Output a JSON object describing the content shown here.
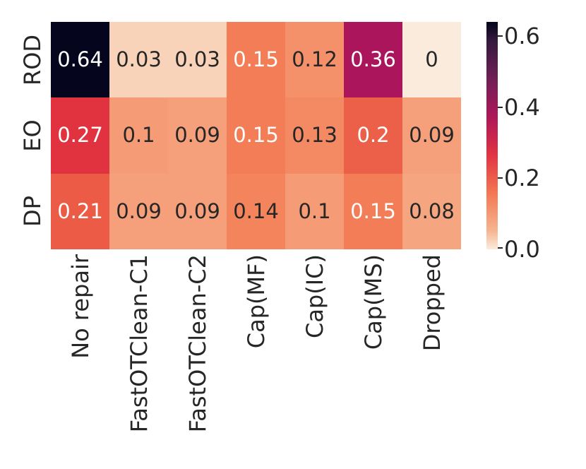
{
  "figure": {
    "background": "#ffffff"
  },
  "colors": {
    "tick_label": "#262626",
    "annot_dark": "#262626",
    "annot_light": "#ffffff"
  },
  "chart_data": {
    "type": "heatmap",
    "title": "",
    "xlabel": "",
    "ylabel": "",
    "colormap": "rocket_r",
    "rows": [
      "ROD",
      "EO",
      "DP"
    ],
    "columns": [
      "No repair",
      "FastOTClean-C1",
      "FastOTClean-C2",
      "Cap(MF)",
      "Cap(IC)",
      "Cap(MS)",
      "Dropped"
    ],
    "values": [
      [
        0.64,
        0.03,
        0.03,
        0.15,
        0.12,
        0.36,
        0
      ],
      [
        0.27,
        0.1,
        0.09,
        0.15,
        0.13,
        0.2,
        0.09
      ],
      [
        0.21,
        0.09,
        0.09,
        0.14,
        0.1,
        0.15,
        0.08
      ]
    ],
    "cell_labels": [
      [
        "0.64",
        "0.03",
        "0.03",
        "0.15",
        "0.12",
        "0.36",
        "0"
      ],
      [
        "0.27",
        "0.1",
        "0.09",
        "0.15",
        "0.13",
        "0.2",
        "0.09"
      ],
      [
        "0.21",
        "0.09",
        "0.09",
        "0.14",
        "0.1",
        "0.15",
        "0.08"
      ]
    ],
    "cell_colors": [
      [
        "#05061E",
        "#F8D3BA",
        "#F8D3BA",
        "#F37D56",
        "#F4906A",
        "#AA155C",
        "#FAEBDC"
      ],
      [
        "#E0333F",
        "#F59B75",
        "#F5A07B",
        "#F37D56",
        "#F48A63",
        "#EC5F48",
        "#F5A07B"
      ],
      [
        "#EB5B45",
        "#F5A07B",
        "#F5A07B",
        "#F4845C",
        "#F59B75",
        "#F37D56",
        "#F5A681"
      ]
    ],
    "cell_text_tone": [
      [
        "light",
        "dark",
        "dark",
        "light",
        "dark",
        "light",
        "dark"
      ],
      [
        "light",
        "dark",
        "dark",
        "light",
        "dark",
        "light",
        "dark"
      ],
      [
        "light",
        "dark",
        "dark",
        "dark",
        "dark",
        "light",
        "dark"
      ]
    ],
    "colorbar": {
      "vmin": 0.0,
      "vmax": 0.64,
      "tick_labels": [
        "0.6",
        "0.4",
        "0.2",
        "0.0"
      ],
      "tick_values": [
        0.6,
        0.4,
        0.2,
        0.0
      ],
      "gradient_stops": [
        {
          "color": "#FAEBDD",
          "pos": 0
        },
        {
          "color": "#F6B48F",
          "pos": 8.33
        },
        {
          "color": "#F37651",
          "pos": 25
        },
        {
          "color": "#E13342",
          "pos": 41.67
        },
        {
          "color": "#AD1759",
          "pos": 58.33
        },
        {
          "color": "#701F57",
          "pos": 75
        },
        {
          "color": "#35193E",
          "pos": 91.67
        },
        {
          "color": "#03051A",
          "pos": 100
        }
      ],
      "legend_position": "right"
    },
    "grid": false
  }
}
